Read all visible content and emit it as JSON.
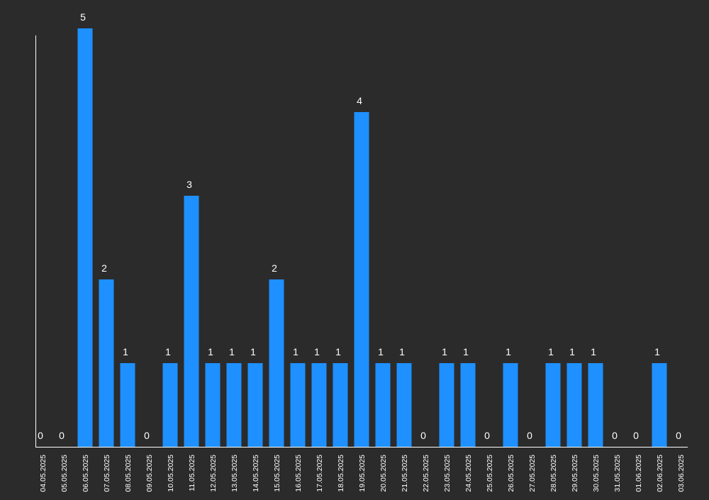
{
  "colors": {
    "background": "#2b2b2b",
    "bar": "#1e90ff",
    "axis": "#ffffff",
    "label": "#ffffff"
  },
  "chart_data": {
    "type": "bar",
    "title": "",
    "xlabel": "",
    "ylabel": "",
    "ylim": [
      0,
      5
    ],
    "grid": false,
    "legend": "none",
    "categories": [
      "04.05.2025",
      "05.05.2025",
      "06.05.2025",
      "07.05.2025",
      "08.05.2025",
      "09.05.2025",
      "10.05.2025",
      "11.05.2025",
      "12.05.2025",
      "13.05.2025",
      "14.05.2025",
      "15.05.2025",
      "16.05.2025",
      "17.05.2025",
      "18.05.2025",
      "19.05.2025",
      "20.05.2025",
      "21.05.2025",
      "22.05.2025",
      "23.05.2025",
      "24.05.2025",
      "25.05.2025",
      "26.05.2025",
      "27.05.2025",
      "28.05.2025",
      "29.05.2025",
      "30.05.2025",
      "31.05.2025",
      "01.06.2025",
      "02.06.2025",
      "03.06.2025"
    ],
    "values": [
      0,
      0,
      5,
      2,
      1,
      0,
      1,
      3,
      1,
      1,
      1,
      2,
      1,
      1,
      1,
      4,
      1,
      1,
      0,
      1,
      1,
      0,
      1,
      0,
      1,
      1,
      1,
      0,
      0,
      1,
      0
    ]
  }
}
